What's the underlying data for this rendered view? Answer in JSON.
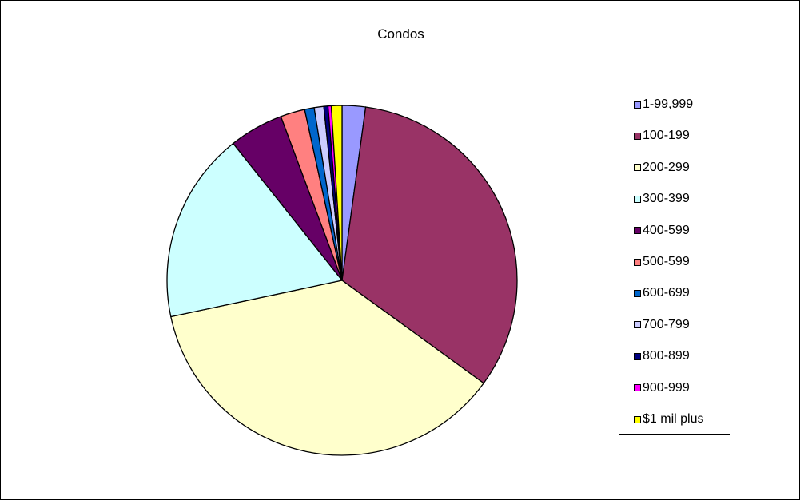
{
  "chart_data": {
    "type": "pie",
    "title": "Condos",
    "legend_position": "right",
    "categories": [
      "1-99,999",
      "100-199",
      "200-299",
      "300-399",
      "400-599",
      "500-599",
      "600-699",
      "700-799",
      "800-899",
      "900-999",
      "$1 mil plus"
    ],
    "values": [
      2.2,
      33.5,
      37.4,
      18.0,
      5.1,
      2.3,
      0.9,
      0.9,
      0.4,
      0.3,
      1.0
    ],
    "colors": [
      "#9999FF",
      "#993366",
      "#FFFFCC",
      "#CCFFFF",
      "#660066",
      "#FF8080",
      "#0066CC",
      "#CCCCFF",
      "#000080",
      "#FF00FF",
      "#FFFF00"
    ]
  }
}
